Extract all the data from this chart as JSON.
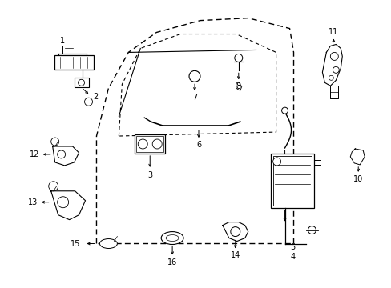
{
  "bg_color": "#ffffff",
  "line_color": "#000000",
  "fig_width": 4.89,
  "fig_height": 3.6,
  "dpi": 100
}
